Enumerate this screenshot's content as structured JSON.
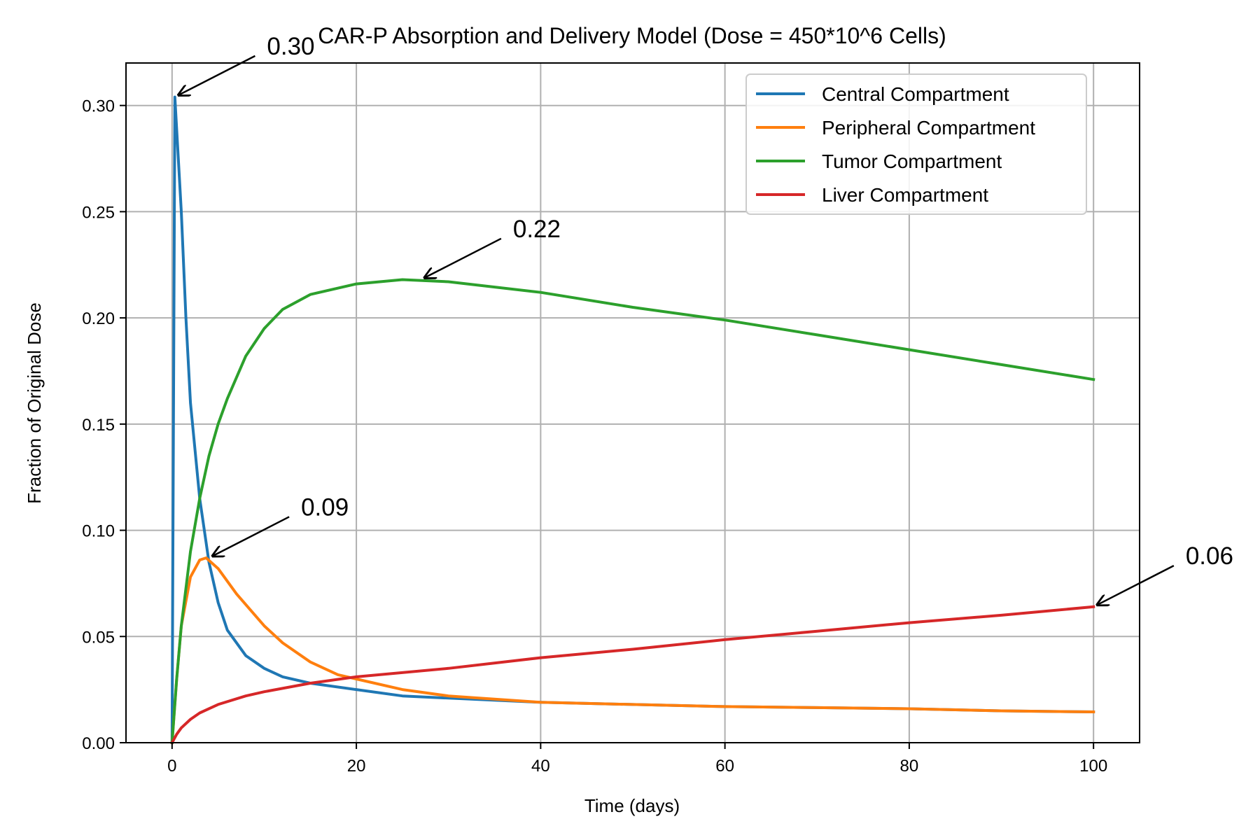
{
  "chart_data": {
    "type": "line",
    "title": "CAR-P Absorption and Delivery Model (Dose = 450*10^6 Cells)",
    "xlabel": "Time (days)",
    "ylabel": "Fraction of Original Dose",
    "xlim": [
      -5,
      105
    ],
    "ylim": [
      0,
      0.32
    ],
    "xticks": [
      0,
      20,
      40,
      60,
      80,
      100
    ],
    "xtick_labels": [
      "0",
      "20",
      "40",
      "60",
      "80",
      "100"
    ],
    "yticks": [
      0,
      0.05,
      0.1,
      0.15,
      0.2,
      0.25,
      0.3
    ],
    "ytick_labels": [
      "0.00",
      "0.05",
      "0.10",
      "0.15",
      "0.20",
      "0.25",
      "0.30"
    ],
    "grid": true,
    "legend_position": "top-right",
    "series": [
      {
        "name": "Central Compartment",
        "color": "#1f77b4",
        "points": [
          [
            0,
            0
          ],
          [
            0.3,
            0.304
          ],
          [
            1,
            0.25
          ],
          [
            1.5,
            0.2
          ],
          [
            2,
            0.16
          ],
          [
            3,
            0.115
          ],
          [
            4,
            0.085
          ],
          [
            5,
            0.066
          ],
          [
            6,
            0.053
          ],
          [
            8,
            0.041
          ],
          [
            10,
            0.035
          ],
          [
            12,
            0.031
          ],
          [
            15,
            0.028
          ],
          [
            20,
            0.025
          ],
          [
            25,
            0.022
          ],
          [
            30,
            0.021
          ],
          [
            40,
            0.019
          ],
          [
            50,
            0.018
          ],
          [
            60,
            0.017
          ],
          [
            70,
            0.0165
          ],
          [
            80,
            0.016
          ],
          [
            90,
            0.015
          ],
          [
            100,
            0.0145
          ]
        ]
      },
      {
        "name": "Peripheral Compartment",
        "color": "#ff7f0e",
        "points": [
          [
            0,
            0
          ],
          [
            0.5,
            0.03
          ],
          [
            1,
            0.055
          ],
          [
            2,
            0.078
          ],
          [
            3,
            0.086
          ],
          [
            3.7,
            0.087
          ],
          [
            5,
            0.082
          ],
          [
            7,
            0.07
          ],
          [
            10,
            0.055
          ],
          [
            12,
            0.047
          ],
          [
            15,
            0.038
          ],
          [
            18,
            0.032
          ],
          [
            20,
            0.03
          ],
          [
            25,
            0.025
          ],
          [
            30,
            0.022
          ],
          [
            40,
            0.019
          ],
          [
            50,
            0.018
          ],
          [
            60,
            0.017
          ],
          [
            70,
            0.0165
          ],
          [
            80,
            0.016
          ],
          [
            90,
            0.015
          ],
          [
            100,
            0.0145
          ]
        ]
      },
      {
        "name": "Tumor Compartment",
        "color": "#2ca02c",
        "points": [
          [
            0,
            0
          ],
          [
            0.5,
            0.03
          ],
          [
            1,
            0.055
          ],
          [
            2,
            0.09
          ],
          [
            3,
            0.115
          ],
          [
            4,
            0.135
          ],
          [
            5,
            0.15
          ],
          [
            6,
            0.162
          ],
          [
            8,
            0.182
          ],
          [
            10,
            0.195
          ],
          [
            12,
            0.204
          ],
          [
            15,
            0.211
          ],
          [
            20,
            0.216
          ],
          [
            25,
            0.218
          ],
          [
            30,
            0.217
          ],
          [
            40,
            0.212
          ],
          [
            50,
            0.205
          ],
          [
            60,
            0.199
          ],
          [
            70,
            0.192
          ],
          [
            80,
            0.185
          ],
          [
            90,
            0.178
          ],
          [
            100,
            0.171
          ]
        ]
      },
      {
        "name": "Liver Compartment",
        "color": "#d62728",
        "points": [
          [
            0,
            0
          ],
          [
            0.5,
            0.004
          ],
          [
            1,
            0.007
          ],
          [
            2,
            0.011
          ],
          [
            3,
            0.014
          ],
          [
            5,
            0.018
          ],
          [
            8,
            0.022
          ],
          [
            10,
            0.024
          ],
          [
            15,
            0.028
          ],
          [
            20,
            0.031
          ],
          [
            30,
            0.035
          ],
          [
            40,
            0.04
          ],
          [
            50,
            0.044
          ],
          [
            60,
            0.0485
          ],
          [
            70,
            0.0525
          ],
          [
            80,
            0.0565
          ],
          [
            90,
            0.06
          ],
          [
            100,
            0.064
          ]
        ]
      }
    ],
    "annotations": [
      {
        "text": "0.30",
        "point": [
          0.3,
          0.304
        ],
        "text_pos": [
          10.3,
          0.324
        ]
      },
      {
        "text": "0.22",
        "point": [
          27,
          0.218
        ],
        "text_pos": [
          37,
          0.238
        ]
      },
      {
        "text": "0.09",
        "point": [
          4,
          0.087
        ],
        "text_pos": [
          14,
          0.107
        ]
      },
      {
        "text": "0.06",
        "point": [
          100,
          0.064
        ],
        "text_pos": [
          110,
          0.084
        ]
      }
    ]
  }
}
